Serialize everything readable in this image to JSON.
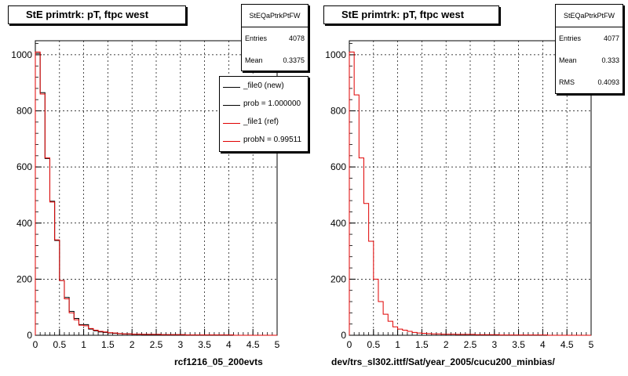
{
  "chart_data": [
    {
      "type": "histogram",
      "title": "StE primtrk: pT, ftpc west",
      "xlabel": "rcf1216_05_200evts",
      "ylabel": "",
      "xlim": [
        0,
        5
      ],
      "ylim": [
        0,
        1050
      ],
      "xticks": [
        "0",
        "0.5",
        "1",
        "1.5",
        "2",
        "2.5",
        "3",
        "3.5",
        "4",
        "4.5",
        "5"
      ],
      "yticks": [
        "0",
        "200",
        "400",
        "600",
        "800",
        "1000"
      ],
      "grid": true,
      "bin_width": 0.1,
      "stats": {
        "name": "StEQaPtrkPtFW",
        "rows": [
          {
            "label": "Entries",
            "value": "4078"
          },
          {
            "label": "Mean",
            "value": "0.3375"
          }
        ]
      },
      "legend": [
        {
          "label": "_file0 (new)",
          "color": "#000000"
        },
        {
          "label": "prob = 1.000000",
          "color": "#000000"
        },
        {
          "label": "_file1 (ref)",
          "color": "#e00000"
        },
        {
          "label": "probN = 0.99511",
          "color": "#e00000"
        }
      ],
      "series": [
        {
          "name": "_file0 (new)",
          "color": "#000000",
          "values": [
            1005,
            865,
            630,
            478,
            338,
            195,
            135,
            85,
            60,
            38,
            38,
            22,
            16,
            12,
            10,
            8,
            7,
            6,
            5,
            5,
            4,
            4,
            3,
            3,
            3,
            3,
            2,
            2,
            2,
            2,
            2,
            1,
            1,
            1,
            1,
            1,
            1,
            1,
            1,
            1,
            1,
            0,
            0,
            0,
            0,
            0,
            0,
            0,
            0,
            0
          ]
        },
        {
          "name": "_file1 (ref)",
          "color": "#e00000",
          "values": [
            1010,
            860,
            632,
            475,
            340,
            195,
            130,
            80,
            55,
            36,
            34,
            24,
            18,
            14,
            12,
            9,
            8,
            6,
            5,
            5,
            4,
            4,
            3,
            3,
            3,
            3,
            2,
            2,
            2,
            2,
            2,
            1,
            1,
            1,
            1,
            1,
            1,
            1,
            1,
            1,
            1,
            0,
            0,
            0,
            0,
            0,
            0,
            0,
            0,
            0
          ]
        }
      ]
    },
    {
      "type": "histogram",
      "title": "StE primtrk: pT, ftpc west",
      "xlabel": "dev/trs_sl302.ittf/Sat/year_2005/cucu200_minbias/",
      "ylabel": "",
      "xlim": [
        0,
        5
      ],
      "ylim": [
        0,
        1050
      ],
      "xticks": [
        "0",
        "0.5",
        "1",
        "1.5",
        "2",
        "2.5",
        "3",
        "3.5",
        "4",
        "4.5",
        "5"
      ],
      "yticks": [
        "0",
        "200",
        "400",
        "600",
        "800",
        "1000"
      ],
      "grid": true,
      "bin_width": 0.1,
      "stats": {
        "name": "StEQaPtrkPtFW",
        "rows": [
          {
            "label": "Entries",
            "value": "4077"
          },
          {
            "label": "Mean",
            "value": "0.333"
          },
          {
            "label": "RMS",
            "value": "0.4093"
          }
        ]
      },
      "series": [
        {
          "name": "",
          "color": "#e00000",
          "values": [
            1010,
            857,
            632,
            470,
            335,
            200,
            120,
            75,
            50,
            30,
            22,
            18,
            14,
            10,
            8,
            7,
            6,
            5,
            5,
            4,
            4,
            4,
            3,
            3,
            3,
            3,
            2,
            2,
            2,
            2,
            2,
            1,
            1,
            1,
            1,
            1,
            1,
            1,
            1,
            1,
            1,
            0,
            0,
            0,
            0,
            0,
            0,
            0,
            0,
            0
          ]
        }
      ]
    }
  ]
}
